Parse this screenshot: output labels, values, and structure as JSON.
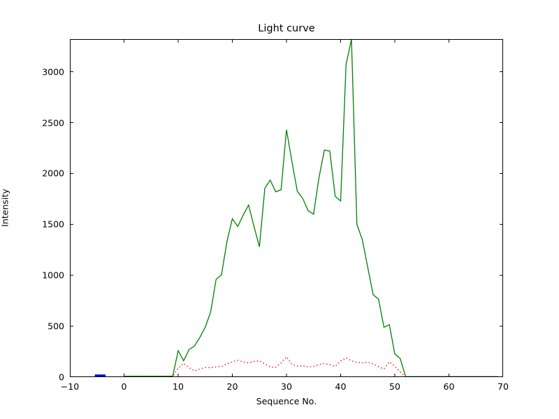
{
  "figure": {
    "title": "Light curve",
    "xlabel": "Sequence No.",
    "ylabel": "Intensity",
    "background_color": "#ffffff",
    "frame_color": "#000000"
  },
  "chart_data": {
    "type": "line",
    "title": "Light curve",
    "xlabel": "Sequence No.",
    "ylabel": "Intensity",
    "xlim": [
      -10,
      70
    ],
    "ylim": [
      0,
      3320
    ],
    "xticks": [
      -10,
      0,
      10,
      20,
      30,
      40,
      50,
      60,
      70
    ],
    "xtick_labels": [
      "−10",
      "0",
      "10",
      "20",
      "30",
      "40",
      "50",
      "60",
      "70"
    ],
    "yticks": [
      0,
      500,
      1000,
      1500,
      2000,
      2500,
      3000
    ],
    "ytick_labels": [
      "0",
      "500",
      "1000",
      "1500",
      "2000",
      "2500",
      "3000"
    ],
    "grid": false,
    "legend": null,
    "tick_direction": "in",
    "series": [
      {
        "name": "light-curve",
        "color": "#008000",
        "line_style": "solid",
        "x": [
          0,
          1,
          2,
          3,
          4,
          5,
          6,
          7,
          8,
          9,
          10,
          11,
          12,
          13,
          14,
          15,
          16,
          17,
          18,
          19,
          20,
          21,
          22,
          23,
          24,
          25,
          26,
          27,
          28,
          29,
          30,
          31,
          32,
          33,
          34,
          35,
          36,
          37,
          38,
          39,
          40,
          41,
          42,
          43,
          44,
          45,
          46,
          47,
          48,
          49,
          50,
          51,
          52,
          53,
          54,
          55,
          56,
          57,
          58,
          59,
          60,
          61,
          62,
          63,
          64,
          65,
          66,
          67,
          68,
          69
        ],
        "y": [
          8,
          8,
          8,
          8,
          8,
          8,
          8,
          8,
          8,
          10,
          260,
          160,
          270,
          305,
          390,
          490,
          640,
          960,
          1005,
          1330,
          1555,
          1480,
          1590,
          1690,
          1480,
          1280,
          1855,
          1935,
          1820,
          1840,
          2430,
          2120,
          1825,
          1755,
          1635,
          1600,
          1960,
          2230,
          2220,
          1775,
          1730,
          3070,
          3320,
          1500,
          1350,
          1080,
          810,
          765,
          490,
          515,
          228,
          182,
          5,
          5,
          5,
          5,
          5,
          5,
          5,
          5,
          5,
          5,
          5,
          5,
          5,
          5,
          5,
          5,
          5,
          5
        ]
      },
      {
        "name": "background-level",
        "color": "#ff0000",
        "line_style": "dotted",
        "x": [
          0,
          1,
          2,
          3,
          4,
          5,
          6,
          7,
          8,
          9,
          10,
          11,
          12,
          13,
          14,
          15,
          16,
          17,
          18,
          19,
          20,
          21,
          22,
          23,
          24,
          25,
          26,
          27,
          28,
          29,
          30,
          31,
          32,
          33,
          34,
          35,
          36,
          37,
          38,
          39,
          40,
          41,
          42,
          43,
          44,
          45,
          46,
          47,
          48,
          49,
          50,
          51,
          52,
          53,
          54,
          55,
          56,
          57,
          58,
          59,
          60,
          61,
          62,
          63,
          64,
          65,
          66,
          67,
          68,
          69
        ],
        "y": [
          3,
          3,
          3,
          3,
          3,
          3,
          3,
          3,
          3,
          5,
          90,
          135,
          95,
          60,
          80,
          95,
          92,
          100,
          105,
          130,
          150,
          165,
          148,
          140,
          155,
          160,
          130,
          100,
          95,
          140,
          200,
          125,
          107,
          112,
          100,
          105,
          123,
          135,
          122,
          105,
          158,
          190,
          160,
          145,
          140,
          148,
          130,
          100,
          80,
          150,
          105,
          50,
          3,
          3,
          3,
          3,
          3,
          3,
          3,
          3,
          3,
          3,
          3,
          3,
          3,
          3,
          3,
          3,
          3,
          3
        ]
      },
      {
        "name": "blue-marker-segment",
        "color": "#0000ff",
        "line_style": "thick",
        "x": [
          -5.4,
          -3.4
        ],
        "y": [
          12,
          12
        ]
      }
    ]
  }
}
